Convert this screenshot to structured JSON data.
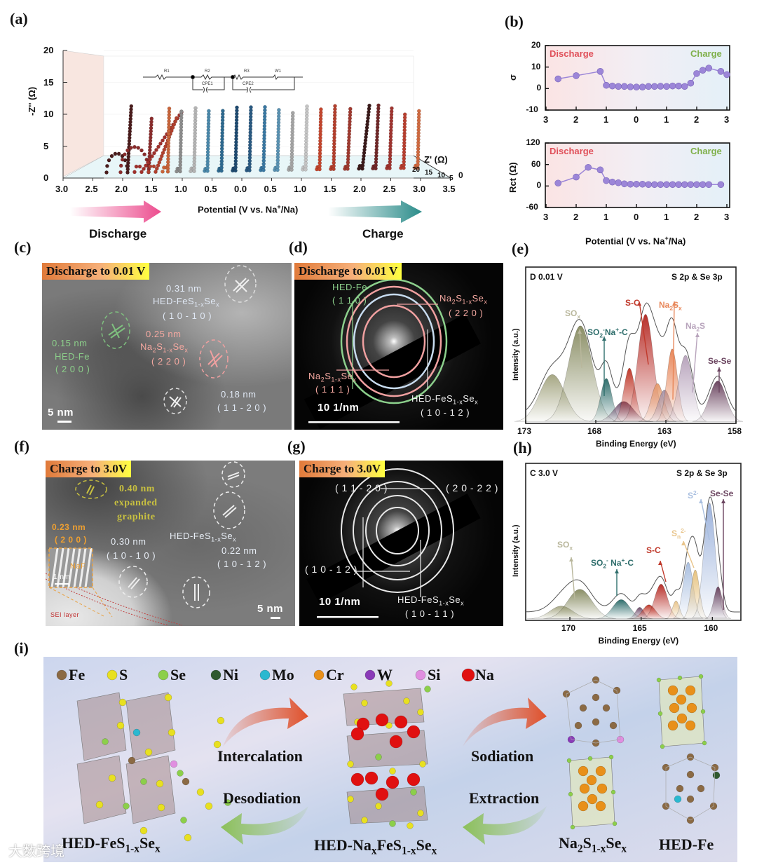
{
  "panel_labels": {
    "a": "(a)",
    "b": "(b)",
    "c": "(c)",
    "d": "(d)",
    "e": "(e)",
    "f": "(f)",
    "g": "(g)",
    "h": "(h)",
    "i": "(i)"
  },
  "panel_a": {
    "y_label": "-Z'' (Ω)",
    "y_ticks": [
      "20",
      "15",
      "10",
      "5",
      "0"
    ],
    "x_ticks": [
      "3.0",
      "2.5",
      "2.0",
      "1.5",
      "1.0",
      "0.5",
      "0.0",
      "0.5",
      "1.0",
      "1.5",
      "2.0",
      "2.5",
      "3.0",
      "3.5"
    ],
    "x_label": "Potential (V vs. Na^{+}/Na)",
    "depth_label": "Z' (Ω)",
    "depth_ticks": [
      "20",
      "15",
      "10",
      "5",
      "0"
    ],
    "circuit": {
      "r1": "R1",
      "r2": "R2",
      "cpe1": "CPE1",
      "r3": "R3",
      "w1": "W1",
      "cpe2": "CPE2"
    },
    "discharge_label": "Discharge",
    "charge_label": "Charge",
    "discharge_color": "#ec4c8e",
    "charge_color": "#2b8c8a"
  },
  "panel_b": {
    "discharge_label": "Discharge",
    "charge_label": "Charge",
    "x_label": "Potential (V vs. Na^{+}/Na)",
    "discharge_color": "#e0505a",
    "charge_color": "#7fb04a",
    "point_color": "#9c86d8"
  },
  "panel_c": {
    "badge": "Discharge to 0.01 V",
    "l1": "0.31 nm",
    "l2": "HED-FeS_{1-x}Se_{x}",
    "l3": "( 1 0 - 1 0 )",
    "l4": "0.15 nm",
    "l5": "HED-Fe",
    "l6": "( 2 0 0 )",
    "l7": "0.25 nm",
    "l8": "Na_{2}S_{1-x}Se_{x}",
    "l9": "( 2 2 0 )",
    "l10": "0.18 nm",
    "l11": "( 1 1 - 2 0 )",
    "scale": "5 nm"
  },
  "panel_d": {
    "badge": "Discharge to 0.01 V",
    "l1": "HED-Fe",
    "l2": "( 1 1 0 )",
    "l3": "Na_{2}S_{1-x}Se_{x}",
    "l4": "( 2 2 0 )",
    "l5": "Na_{2}S_{1-x}Se_{x}",
    "l6": "( 1 1 1 )",
    "l7": "HED-FeS_{1-x}Se_{x}",
    "l8": "( 1 0 - 1 2 )",
    "scale": "10 1/nm"
  },
  "panel_f": {
    "badge": "Charge to 3.0V",
    "l1": "0.40 nm",
    "l2": "expanded",
    "l3": "graphite",
    "l4": "0.23 nm",
    "l5": "( 2 0 0 )",
    "l6": "NaF",
    "l7": "1 nm",
    "l8": "HED-FeS_{1-x}Se_{x}",
    "l9": "0.30 nm",
    "l10": "( 1 0 - 1 0 )",
    "l11": "0.22 nm",
    "l12": "( 1 0 - 1 2 )",
    "l13": "SEI layer",
    "scale": "5 nm"
  },
  "panel_g": {
    "badge": "Charge to 3.0V",
    "l1": "( 1 1 - 2 0 )",
    "l2": "( 2 0 - 2 2 )",
    "l3": "( 1 0 - 1 2 )",
    "l4": "HED-FeS_{1-x}Se_{x}",
    "l5": "( 1 0 - 1 1 )",
    "scale": "10 1/nm"
  },
  "panel_i": {
    "legend": [
      {
        "label": "Fe",
        "color": "#8b6a44"
      },
      {
        "label": "S",
        "color": "#e8e020"
      },
      {
        "label": "Se",
        "color": "#8ccf4a"
      },
      {
        "label": "Ni",
        "color": "#2f5a2f"
      },
      {
        "label": "Mo",
        "color": "#2ab8d0"
      },
      {
        "label": "Cr",
        "color": "#e8901a"
      },
      {
        "label": "W",
        "color": "#8a3ab8"
      },
      {
        "label": "Si",
        "color": "#e08ee0"
      },
      {
        "label": "Na",
        "color": "#e01010"
      }
    ],
    "intercalation": "Intercalation",
    "desodiation": "Desodiation",
    "sodiation": "Sodiation",
    "extraction": "Extraction",
    "name1": "HED-FeS_{1-x}Se_{x}",
    "name2": "HED-Na_{x}FeS_{1-x}Se_{x}",
    "name3": "Na_{2}S_{1-x}Se_{x}",
    "name4": "HED-Fe",
    "forward_arrow_color": "#e0502a",
    "back_arrow_color": "#8cc05a",
    "watermark": "大数跨境"
  },
  "chart_data": [
    {
      "id": "a",
      "type": "scatter",
      "title": "",
      "xlabel": "Potential (V vs. Na+/Na)",
      "ylabel": "-Z'' (Ω)",
      "zlabel": "Z' (Ω)",
      "ylim": [
        0,
        20
      ],
      "zlim": [
        0,
        20
      ],
      "series": [
        {
          "phase": "discharge",
          "potential": 2.2,
          "arc_diameter": 6,
          "z_max": 10.5,
          "tail_slope": 0.05,
          "color": "#4a1c1c"
        },
        {
          "phase": "discharge",
          "potential": 1.7,
          "arc_diameter": 8,
          "z_max": 8.5,
          "tail_slope": 0.05,
          "color": "#8a2c2c"
        },
        {
          "phase": "discharge",
          "potential": 1.2,
          "arc_diameter": 2,
          "z_max": 9.7,
          "tail_slope": 0.6,
          "color": "#a0302c"
        },
        {
          "phase": "discharge",
          "potential": 0.9,
          "arc_diameter": 2,
          "z_max": 8.7,
          "tail_slope": 0.35,
          "color": "#b0402e"
        },
        {
          "phase": "discharge",
          "potential": 0.75,
          "arc_diameter": 1.5,
          "z_max": 10,
          "tail_slope": 0.02,
          "color": "#c8643a"
        },
        {
          "phase": "discharge",
          "potential": 0.6,
          "arc_diameter": 1,
          "z_max": 9.6,
          "tail_slope": 0.02,
          "color": "#8c8c8c"
        },
        {
          "phase": "discharge",
          "potential": 0.45,
          "arc_diameter": 1,
          "z_max": 10.4,
          "tail_slope": 0.02,
          "color": "#b4b4b4"
        },
        {
          "phase": "discharge",
          "potential": 0.3,
          "arc_diameter": 0.8,
          "z_max": 9.7,
          "tail_slope": 0.02,
          "color": "#4a88aa"
        },
        {
          "phase": "discharge",
          "potential": 0.15,
          "arc_diameter": 0.8,
          "z_max": 9.8,
          "tail_slope": 0.02,
          "color": "#2e6a90"
        },
        {
          "phase": "discharge",
          "potential": 0.01,
          "arc_diameter": 0.8,
          "z_max": 10.3,
          "tail_slope": 0.02,
          "color": "#1e4a70"
        },
        {
          "phase": "charge",
          "potential": 0.2,
          "arc_diameter": 0.8,
          "z_max": 10.2,
          "tail_slope": 0.02,
          "color": "#2a5a82"
        },
        {
          "phase": "charge",
          "potential": 0.4,
          "arc_diameter": 0.8,
          "z_max": 10.1,
          "tail_slope": 0.02,
          "color": "#3a78a2"
        },
        {
          "phase": "charge",
          "potential": 0.6,
          "arc_diameter": 0.8,
          "z_max": 9.9,
          "tail_slope": 0.02,
          "color": "#5a92b2"
        },
        {
          "phase": "charge",
          "potential": 0.8,
          "arc_diameter": 0.8,
          "z_max": 9.0,
          "tail_slope": 0.02,
          "color": "#a4a4a4"
        },
        {
          "phase": "charge",
          "potential": 1.0,
          "arc_diameter": 0.8,
          "z_max": 10.2,
          "tail_slope": 0.02,
          "color": "#c4c4c4"
        },
        {
          "phase": "charge",
          "potential": 1.2,
          "arc_diameter": 0.8,
          "z_max": 9.9,
          "tail_slope": 0.02,
          "color": "#c4462e"
        },
        {
          "phase": "charge",
          "potential": 1.4,
          "arc_diameter": 0.8,
          "z_max": 10,
          "tail_slope": 0.02,
          "color": "#b4402e"
        },
        {
          "phase": "charge",
          "potential": 1.6,
          "arc_diameter": 0.8,
          "z_max": 9.5,
          "tail_slope": 0.04,
          "color": "#a03a30"
        },
        {
          "phase": "charge",
          "potential": 1.8,
          "arc_diameter": 1,
          "z_max": 10.4,
          "tail_slope": 0.1,
          "color": "#3a1a1a"
        },
        {
          "phase": "charge",
          "potential": 2.0,
          "arc_diameter": 0.8,
          "z_max": 10,
          "tail_slope": 0.04,
          "color": "#702828"
        },
        {
          "phase": "charge",
          "potential": 2.2,
          "arc_diameter": 0.8,
          "z_max": 9.5,
          "tail_slope": 0.03,
          "color": "#a03530"
        },
        {
          "phase": "charge",
          "potential": 2.6,
          "arc_diameter": 0.8,
          "z_max": 8.5,
          "tail_slope": 0.02,
          "color": "#b84030"
        },
        {
          "phase": "charge",
          "potential": 2.8,
          "arc_diameter": 0.8,
          "z_max": 9.4,
          "tail_slope": 0.02,
          "color": "#d06a40"
        }
      ]
    },
    {
      "id": "b-sigma",
      "type": "line",
      "ylabel": "σ",
      "ylim": [
        -10,
        20
      ],
      "y_ticks": [
        20,
        10,
        0,
        -10
      ],
      "x_ticks": [
        "3",
        "2",
        "1",
        "0",
        "1",
        "2",
        "3"
      ],
      "points": [
        [
          "discharge",
          2.6,
          4.5
        ],
        [
          "discharge",
          2.0,
          6
        ],
        [
          "discharge",
          1.2,
          8
        ],
        [
          "discharge",
          1.0,
          1.5
        ],
        [
          "discharge",
          0.8,
          1.2
        ],
        [
          "discharge",
          0.6,
          1
        ],
        [
          "discharge",
          0.4,
          1
        ],
        [
          "discharge",
          0.2,
          0.8
        ],
        [
          "discharge",
          0.0,
          0.7
        ],
        [
          "charge",
          0.2,
          0.7
        ],
        [
          "charge",
          0.4,
          1
        ],
        [
          "charge",
          0.6,
          1
        ],
        [
          "charge",
          0.8,
          1.1
        ],
        [
          "charge",
          1.0,
          1
        ],
        [
          "charge",
          1.2,
          1.2
        ],
        [
          "charge",
          1.4,
          1.2
        ],
        [
          "charge",
          1.6,
          1
        ],
        [
          "charge",
          1.8,
          2.5
        ],
        [
          "charge",
          2.0,
          7
        ],
        [
          "charge",
          2.2,
          8.5
        ],
        [
          "charge",
          2.4,
          9.5
        ],
        [
          "charge",
          2.8,
          8
        ],
        [
          "charge",
          3.0,
          6.5
        ]
      ]
    },
    {
      "id": "b-rct",
      "type": "line",
      "ylabel": "Rct (Ω)",
      "ylim": [
        -60,
        120
      ],
      "y_ticks": [
        120,
        60,
        0,
        -60
      ],
      "x_ticks": [
        "3",
        "2",
        "1",
        "0",
        "1",
        "2",
        "3"
      ],
      "points": [
        [
          "discharge",
          2.6,
          8
        ],
        [
          "discharge",
          2.0,
          25
        ],
        [
          "discharge",
          1.6,
          52
        ],
        [
          "discharge",
          1.2,
          45
        ],
        [
          "discharge",
          1.0,
          15
        ],
        [
          "discharge",
          0.8,
          11
        ],
        [
          "discharge",
          0.6,
          9
        ],
        [
          "discharge",
          0.4,
          6
        ],
        [
          "discharge",
          0.2,
          5
        ],
        [
          "discharge",
          0.0,
          5
        ],
        [
          "charge",
          0.2,
          5
        ],
        [
          "charge",
          0.4,
          4
        ],
        [
          "charge",
          0.6,
          4
        ],
        [
          "charge",
          0.8,
          4
        ],
        [
          "charge",
          1.0,
          4
        ],
        [
          "charge",
          1.2,
          4
        ],
        [
          "charge",
          1.4,
          4
        ],
        [
          "charge",
          1.6,
          4
        ],
        [
          "charge",
          1.8,
          4
        ],
        [
          "charge",
          2.0,
          4
        ],
        [
          "charge",
          2.2,
          4
        ],
        [
          "charge",
          2.4,
          4
        ],
        [
          "charge",
          2.8,
          4
        ]
      ]
    },
    {
      "id": "e",
      "type": "area",
      "title": "D 0.01 V",
      "subtitle": "S 2p & Se 3p",
      "xlabel": "Binding Energy (eV)",
      "ylabel": "Intensity (a.u.)",
      "xlim": [
        173,
        158
      ],
      "x_ticks": [
        173,
        168,
        163,
        158
      ],
      "peaks": [
        {
          "center": 171.1,
          "height": 0.37,
          "width": 0.9,
          "color": "#a6a784"
        },
        {
          "center": 169.1,
          "height": 0.75,
          "width": 0.85,
          "color": "#8b8f66"
        },
        {
          "center": 167.25,
          "height": 0.34,
          "width": 0.4,
          "color": "#2f6e6c"
        },
        {
          "center": 166.0,
          "height": 0.16,
          "width": 0.7,
          "color": "#6d4b6a"
        },
        {
          "center": 165.6,
          "height": 0.42,
          "width": 0.4,
          "color": "#c0392b"
        },
        {
          "center": 164.45,
          "height": 0.84,
          "width": 0.55,
          "color": "#b8302a"
        },
        {
          "center": 163.6,
          "height": 0.3,
          "width": 0.45,
          "color": "#e59a6d"
        },
        {
          "center": 163.1,
          "height": 0.25,
          "width": 0.45,
          "color": "#a894a8"
        },
        {
          "center": 162.55,
          "height": 0.57,
          "width": 0.38,
          "color": "#e8875a"
        },
        {
          "center": 161.6,
          "height": 0.52,
          "width": 0.5,
          "color": "#b8a4bc"
        },
        {
          "center": 159.3,
          "height": 0.32,
          "width": 0.6,
          "color": "#6b4560"
        }
      ],
      "annotations": [
        {
          "text": "SO_{x}",
          "color": "#b9b79c"
        },
        {
          "text": "SO_{2}^{-}Na^{+}-C",
          "color": "#2f6e6c"
        },
        {
          "text": "S-C",
          "color": "#c0392b"
        },
        {
          "text": "Na_{2}S_{x}",
          "color": "#e8875a"
        },
        {
          "text": "Na_{2}S",
          "color": "#b8a4bc"
        },
        {
          "text": "Se-Se",
          "color": "#6b4560"
        }
      ]
    },
    {
      "id": "h",
      "type": "area",
      "title": "C 3.0 V",
      "subtitle": "S 2p & Se 3p",
      "xlabel": "Binding Energy (eV)",
      "ylabel": "Intensity (a.u.)",
      "xlim": [
        173.1,
        158
      ],
      "x_ticks": [
        170,
        165,
        160
      ],
      "peaks": [
        {
          "center": 170.6,
          "height": 0.1,
          "width": 0.8,
          "color": "#a6a784"
        },
        {
          "center": 169.3,
          "height": 0.23,
          "width": 0.85,
          "color": "#8b8f66"
        },
        {
          "center": 166.4,
          "height": 0.15,
          "width": 0.6,
          "color": "#2f6e6c"
        },
        {
          "center": 165.1,
          "height": 0.09,
          "width": 0.3,
          "color": "#6d4b6a"
        },
        {
          "center": 164.45,
          "height": 0.11,
          "width": 0.45,
          "color": "#c0392b"
        },
        {
          "center": 163.6,
          "height": 0.27,
          "width": 0.45,
          "color": "#b8302a"
        },
        {
          "center": 162.55,
          "height": 0.14,
          "width": 0.25,
          "color": "#e8c48a"
        },
        {
          "center": 161.7,
          "height": 0.44,
          "width": 0.35,
          "color": "#a9bfe0"
        },
        {
          "center": 161.2,
          "height": 0.38,
          "width": 0.3,
          "color": "#e6c27f"
        },
        {
          "center": 160.2,
          "height": 0.9,
          "width": 0.4,
          "color": "#9db3dc"
        },
        {
          "center": 159.6,
          "height": 0.25,
          "width": 0.3,
          "color": "#6b4560"
        }
      ],
      "annotations": [
        {
          "text": "SO_{x}",
          "color": "#b9b79c"
        },
        {
          "text": "SO_{2}^{-} Na^{+}-C",
          "color": "#2f6e6c"
        },
        {
          "text": "S-C",
          "color": "#c0392b"
        },
        {
          "text": "S_{n}^{2-}",
          "color": "#e8c48a"
        },
        {
          "text": "S^{2-}",
          "color": "#a9bfe0"
        },
        {
          "text": "Se-Se",
          "color": "#6b4560"
        }
      ]
    }
  ]
}
